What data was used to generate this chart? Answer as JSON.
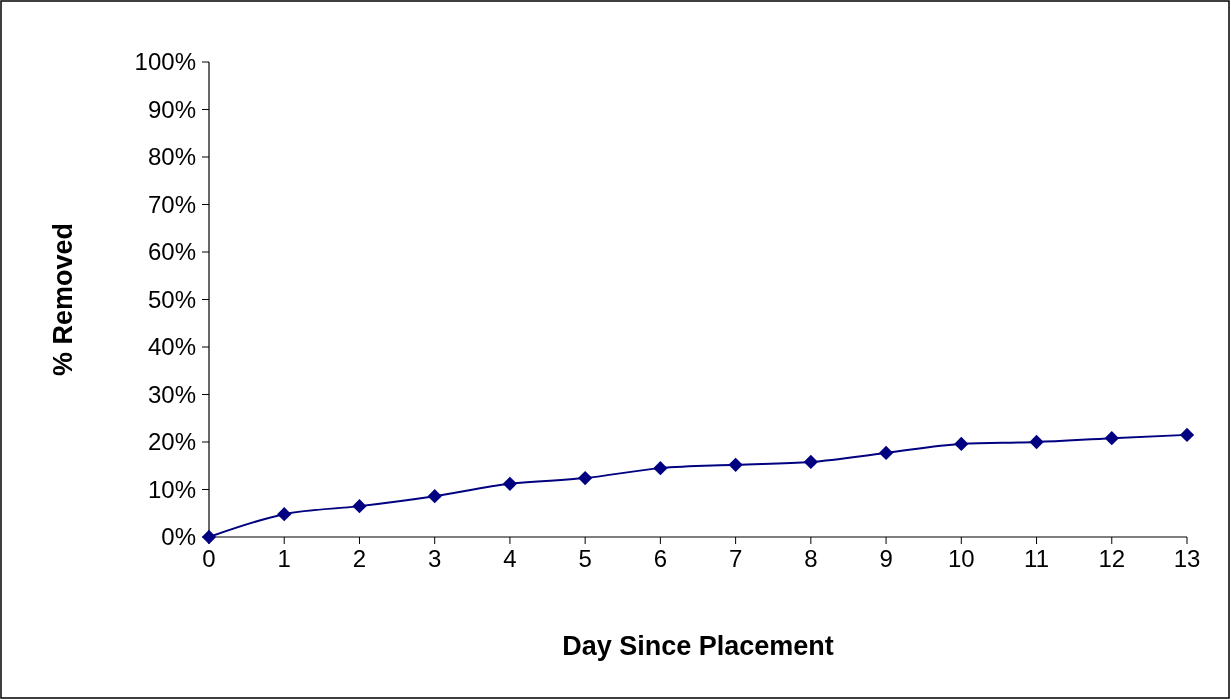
{
  "chart_data": {
    "type": "line",
    "xlabel": "Day Since Placement",
    "ylabel": "% Removed",
    "x": [
      0,
      1,
      2,
      3,
      4,
      5,
      6,
      7,
      8,
      9,
      10,
      11,
      12,
      13
    ],
    "series": [
      {
        "color": "#000080",
        "values": [
          0,
          4.8,
          6.5,
          8.6,
          11.2,
          12.4,
          14.5,
          15.2,
          15.8,
          17.7,
          19.6,
          20,
          20.8,
          21.5
        ]
      }
    ],
    "xlim": [
      0,
      13
    ],
    "xticks": [
      0,
      1,
      2,
      3,
      4,
      5,
      6,
      7,
      8,
      9,
      10,
      11,
      12,
      13
    ],
    "ylim": [
      0,
      100
    ],
    "yticks": [
      {
        "value": 0,
        "label": "0%"
      },
      {
        "value": 10,
        "label": "10%"
      },
      {
        "value": 20,
        "label": "20%"
      },
      {
        "value": 30,
        "label": "30%"
      },
      {
        "value": 40,
        "label": "40%"
      },
      {
        "value": 50,
        "label": "50%"
      },
      {
        "value": 60,
        "label": "60%"
      },
      {
        "value": 70,
        "label": "70%"
      },
      {
        "value": 80,
        "label": "80%"
      },
      {
        "value": 90,
        "label": "90%"
      },
      {
        "value": 100,
        "label": "100%"
      }
    ],
    "grid": false,
    "marker": "diamond",
    "line_style": "solid"
  }
}
